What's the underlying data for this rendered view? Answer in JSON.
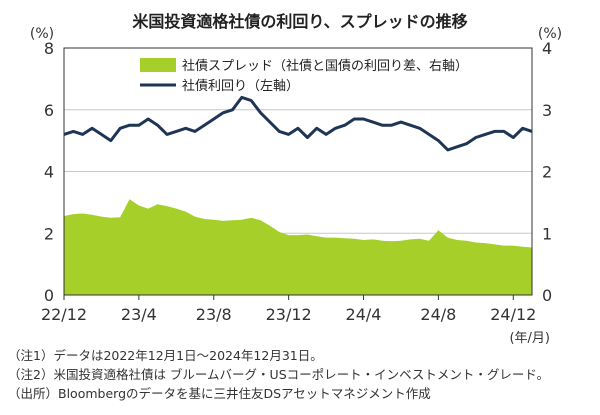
{
  "title": "米国投資適格社債の利回り、スプレッドの推移",
  "notes": [
    "（注1）データは2022年12月1日～2024年12月31日。",
    "（注2）米国投資適格社債は ブルームバーグ・USコーポレート・インベストメント・グレード。",
    "（出所）Bloombergのデータを基に三井住友DSアセットマネジメント作成"
  ],
  "colors": {
    "yield": "#1f3556",
    "spread": "#a6cf2a",
    "grid": "#c8c8c8"
  },
  "chart_data": {
    "type": "line+area",
    "left_axis": {
      "unit": "(%)",
      "range": [
        0,
        8
      ],
      "ticks": [
        "0",
        "2",
        "4",
        "6",
        "8"
      ]
    },
    "right_axis": {
      "unit": "(%)",
      "range": [
        0,
        4
      ],
      "ticks": [
        "0",
        "1",
        "2",
        "3",
        "4"
      ]
    },
    "x_axis": {
      "unit": "(年/月)",
      "ticks": [
        "22/12",
        "23/4",
        "23/8",
        "23/12",
        "24/4",
        "24/8",
        "24/12"
      ],
      "tick_positions": [
        0,
        4,
        8,
        12,
        16,
        20,
        24
      ],
      "range": [
        0,
        25
      ]
    },
    "series": [
      {
        "name": "社債スプレッド（社債と国債の利回り差、右軸）",
        "axis": "right",
        "style": "area",
        "x": [
          0,
          0.5,
          1,
          1.5,
          2,
          2.5,
          3,
          3.5,
          4,
          4.5,
          5,
          5.5,
          6,
          6.5,
          7,
          7.5,
          8,
          8.5,
          9,
          9.5,
          10,
          10.5,
          11,
          11.5,
          12,
          12.5,
          13,
          13.5,
          14,
          14.5,
          15,
          15.5,
          16,
          16.5,
          17,
          17.5,
          18,
          18.5,
          19,
          19.5,
          20,
          20.5,
          21,
          21.5,
          22,
          22.5,
          23,
          23.5,
          24,
          24.5,
          25
        ],
        "values": [
          1.28,
          1.31,
          1.32,
          1.3,
          1.27,
          1.25,
          1.26,
          1.55,
          1.45,
          1.4,
          1.47,
          1.44,
          1.4,
          1.35,
          1.27,
          1.23,
          1.22,
          1.2,
          1.21,
          1.22,
          1.25,
          1.21,
          1.12,
          1.02,
          0.97,
          0.97,
          0.98,
          0.95,
          0.93,
          0.93,
          0.92,
          0.91,
          0.89,
          0.9,
          0.88,
          0.87,
          0.88,
          0.9,
          0.91,
          0.88,
          1.05,
          0.93,
          0.89,
          0.88,
          0.85,
          0.84,
          0.82,
          0.8,
          0.8,
          0.78,
          0.77
        ]
      },
      {
        "name": "社債利回り（左軸）",
        "axis": "left",
        "style": "line",
        "x": [
          0,
          0.5,
          1,
          1.5,
          2,
          2.5,
          3,
          3.5,
          4,
          4.5,
          5,
          5.5,
          6,
          6.5,
          7,
          7.5,
          8,
          8.5,
          9,
          9.5,
          10,
          10.5,
          11,
          11.5,
          12,
          12.5,
          13,
          13.5,
          14,
          14.5,
          15,
          15.5,
          16,
          16.5,
          17,
          17.5,
          18,
          18.5,
          19,
          19.5,
          20,
          20.5,
          21,
          21.5,
          22,
          22.5,
          23,
          23.5,
          24,
          24.5,
          25
        ],
        "values": [
          5.2,
          5.3,
          5.2,
          5.4,
          5.2,
          5.0,
          5.4,
          5.5,
          5.5,
          5.7,
          5.5,
          5.2,
          5.3,
          5.4,
          5.3,
          5.5,
          5.7,
          5.9,
          6.0,
          6.4,
          6.3,
          5.9,
          5.6,
          5.3,
          5.2,
          5.4,
          5.1,
          5.4,
          5.2,
          5.4,
          5.5,
          5.7,
          5.7,
          5.6,
          5.5,
          5.5,
          5.6,
          5.5,
          5.4,
          5.2,
          5.0,
          4.7,
          4.8,
          4.9,
          5.1,
          5.2,
          5.3,
          5.3,
          5.1,
          5.4,
          5.3
        ]
      }
    ]
  }
}
